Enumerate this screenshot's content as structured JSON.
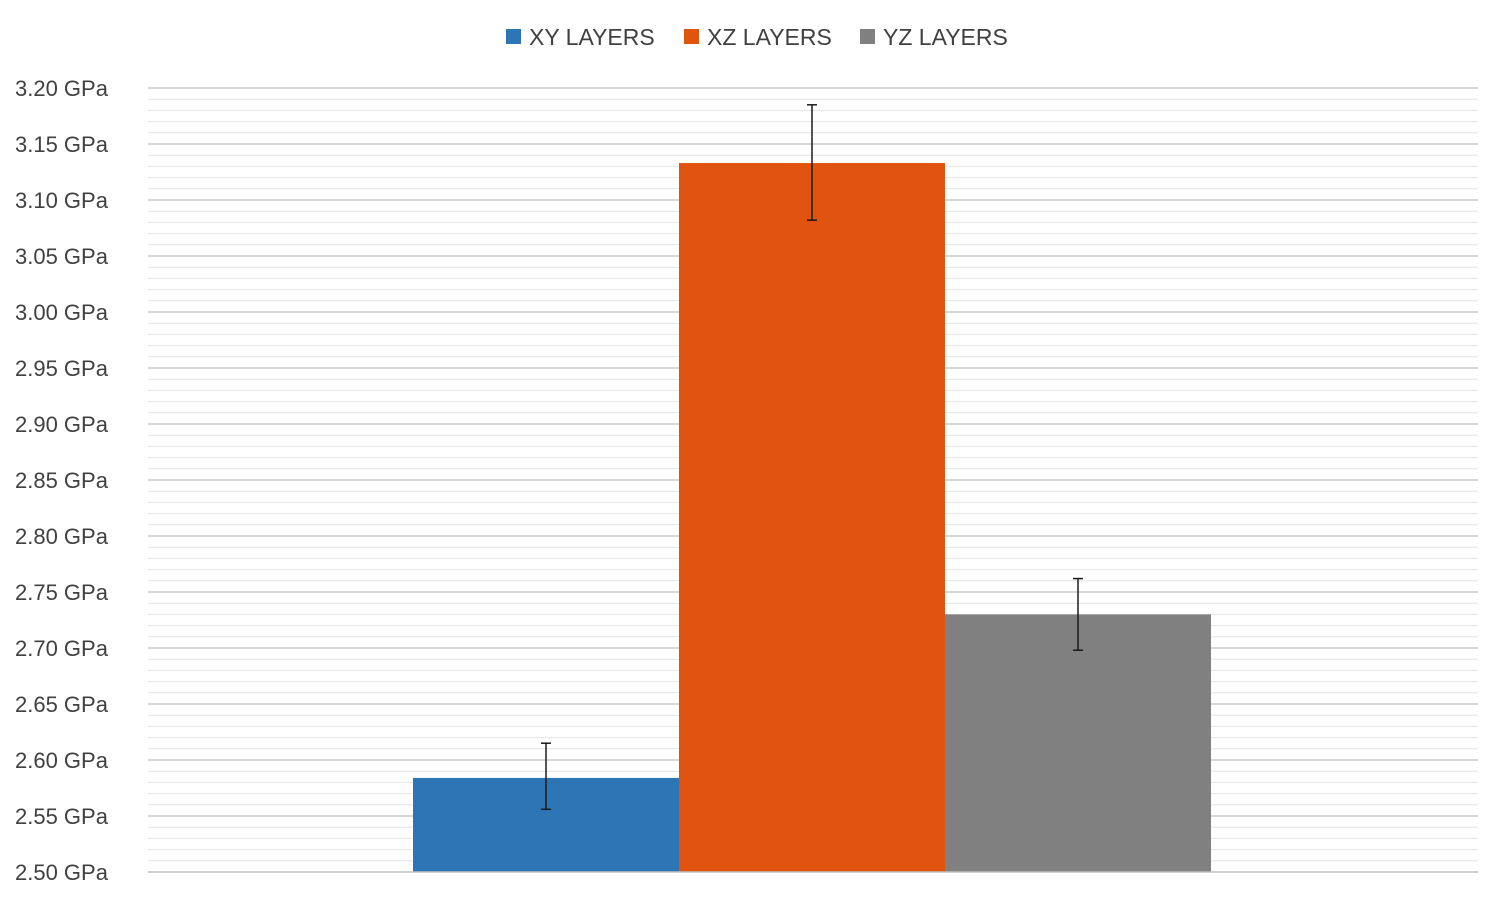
{
  "chart_data": {
    "type": "bar",
    "title": "",
    "xlabel": "",
    "ylabel": "",
    "ylim": [
      2.5,
      3.2
    ],
    "y_tick_step": 0.05,
    "y_tick_unit": "GPa",
    "y_tick_labels": [
      "2.50 GPa",
      "2.55 GPa",
      "2.60 GPa",
      "2.65 GPa",
      "2.70 GPa",
      "2.75 GPa",
      "2.80 GPa",
      "2.85 GPa",
      "2.90 GPa",
      "2.95 GPa",
      "3.00 GPa",
      "3.05 GPa",
      "3.10 GPa",
      "3.15 GPa",
      "3.20 GPa"
    ],
    "grid": "horizontal major and minor",
    "legend_position": "top",
    "series": [
      {
        "name": "XY LAYERS",
        "value": 2.584,
        "error_low": 2.556,
        "error_high": 2.615,
        "color": "#2e75b6"
      },
      {
        "name": "XZ LAYERS",
        "value": 3.133,
        "error_low": 3.082,
        "error_high": 3.185,
        "color": "#e0540f"
      },
      {
        "name": "YZ LAYERS",
        "value": 2.73,
        "error_low": 2.698,
        "error_high": 2.762,
        "color": "#808080"
      }
    ]
  }
}
